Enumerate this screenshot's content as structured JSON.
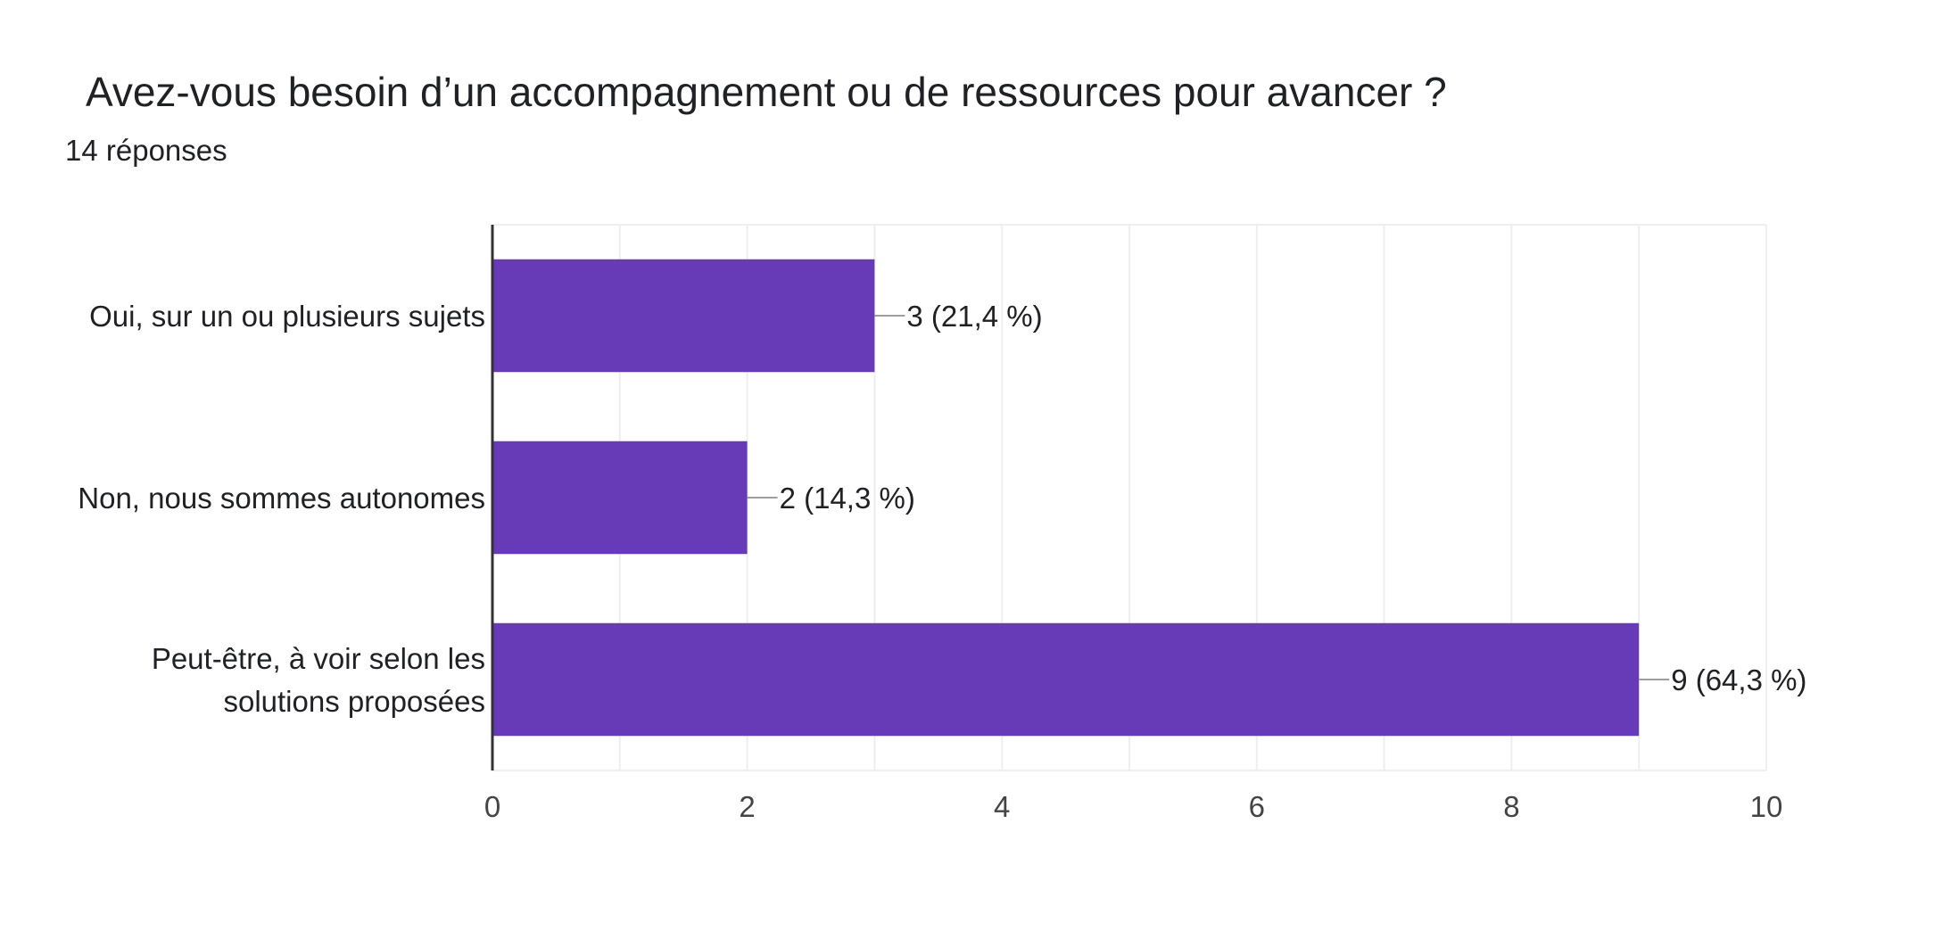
{
  "header": {
    "title": "Avez-vous besoin d’un accompagnement ou de ressources pour avancer ?",
    "subtitle": "14 réponses"
  },
  "colors": {
    "bar": "#673ab7",
    "grid": "#eeeeee",
    "axis": "#333333",
    "leader": "#9e9e9e"
  },
  "chart_data": {
    "type": "bar",
    "orientation": "horizontal",
    "categories": [
      [
        "Oui, sur un ou plusieurs sujets"
      ],
      [
        "Non, nous sommes autonomes"
      ],
      [
        "Peut-être, à voir selon les",
        "solutions proposées"
      ]
    ],
    "values": [
      3,
      2,
      9
    ],
    "data_labels": [
      "3 (21,4 %)",
      "2 (14,3 %)",
      "9 (64,3 %)"
    ],
    "xlim": [
      0,
      10
    ],
    "xticks": [
      0,
      2,
      4,
      6,
      8,
      10
    ],
    "grid": true
  }
}
